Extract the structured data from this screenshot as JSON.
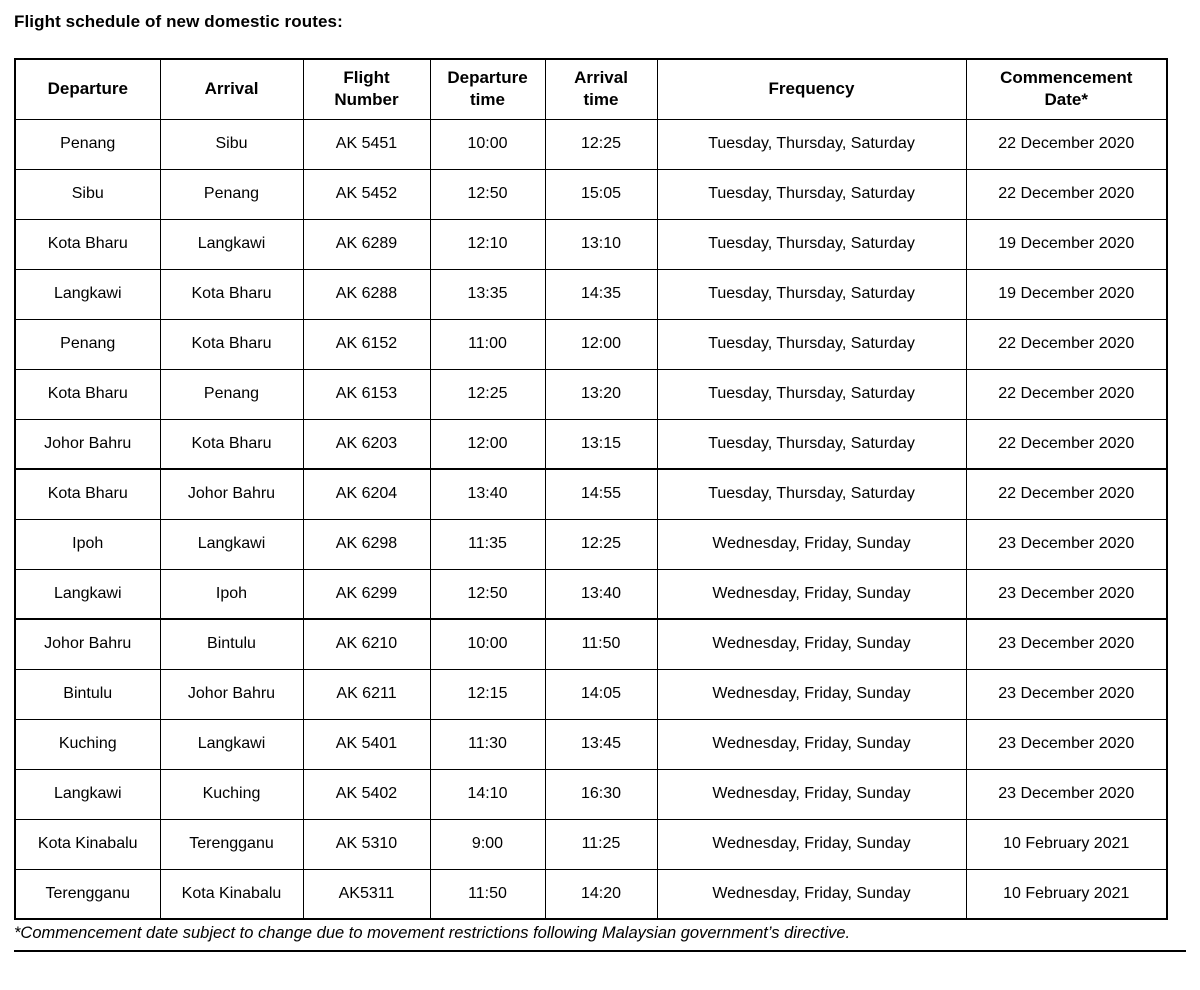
{
  "title": "Flight schedule of new domestic routes:",
  "table": {
    "headers": [
      "Departure",
      "Arrival",
      "Flight\nNumber",
      "Departure\ntime",
      "Arrival\ntime",
      "Frequency",
      "Commencement\nDate*"
    ],
    "rows": [
      [
        "Penang",
        "Sibu",
        "AK 5451",
        "10:00",
        "12:25",
        "Tuesday, Thursday, Saturday",
        "22 December 2020"
      ],
      [
        "Sibu",
        "Penang",
        "AK 5452",
        "12:50",
        "15:05",
        "Tuesday, Thursday, Saturday",
        "22 December 2020"
      ],
      [
        "Kota Bharu",
        "Langkawi",
        "AK 6289",
        "12:10",
        "13:10",
        "Tuesday, Thursday, Saturday",
        "19 December 2020"
      ],
      [
        "Langkawi",
        "Kota Bharu",
        "AK 6288",
        "13:35",
        "14:35",
        "Tuesday, Thursday, Saturday",
        "19 December 2020"
      ],
      [
        "Penang",
        "Kota Bharu",
        "AK 6152",
        "11:00",
        "12:00",
        "Tuesday, Thursday, Saturday",
        "22 December 2020"
      ],
      [
        "Kota Bharu",
        "Penang",
        "AK 6153",
        "12:25",
        "13:20",
        "Tuesday, Thursday, Saturday",
        "22 December 2020"
      ],
      [
        "Johor Bahru",
        "Kota Bharu",
        "AK 6203",
        "12:00",
        "13:15",
        "Tuesday, Thursday, Saturday",
        "22 December 2020"
      ],
      [
        "Kota Bharu",
        "Johor Bahru",
        "AK 6204",
        "13:40",
        "14:55",
        "Tuesday, Thursday, Saturday",
        "22 December 2020"
      ],
      [
        "Ipoh",
        "Langkawi",
        "AK 6298",
        "11:35",
        "12:25",
        "Wednesday, Friday, Sunday",
        "23 December 2020"
      ],
      [
        "Langkawi",
        "Ipoh",
        "AK 6299",
        "12:50",
        "13:40",
        "Wednesday, Friday, Sunday",
        "23 December 2020"
      ],
      [
        "Johor Bahru",
        "Bintulu",
        "AK 6210",
        "10:00",
        "11:50",
        "Wednesday, Friday, Sunday",
        "23 December 2020"
      ],
      [
        "Bintulu",
        "Johor Bahru",
        "AK 6211",
        "12:15",
        "14:05",
        "Wednesday, Friday, Sunday",
        "23 December 2020"
      ],
      [
        "Kuching",
        "Langkawi",
        "AK 5401",
        "11:30",
        "13:45",
        "Wednesday, Friday, Sunday",
        "23 December 2020"
      ],
      [
        "Langkawi",
        "Kuching",
        "AK 5402",
        "14:10",
        "16:30",
        "Wednesday, Friday, Sunday",
        "23 December 2020"
      ],
      [
        "Kota Kinabalu",
        "Terengganu",
        "AK 5310",
        "9:00",
        "11:25",
        "Wednesday, Friday, Sunday",
        "10 February 2021"
      ],
      [
        "Terengganu",
        "Kota Kinabalu",
        "AK5311",
        "11:50",
        "14:20",
        "Wednesday, Friday, Sunday",
        "10 February 2021"
      ]
    ]
  },
  "footnote": "*Commencement date subject to change due to movement restrictions following Malaysian government’s directive.",
  "colors": {
    "text": "#000000",
    "border": "#000000",
    "background": "#ffffff"
  }
}
